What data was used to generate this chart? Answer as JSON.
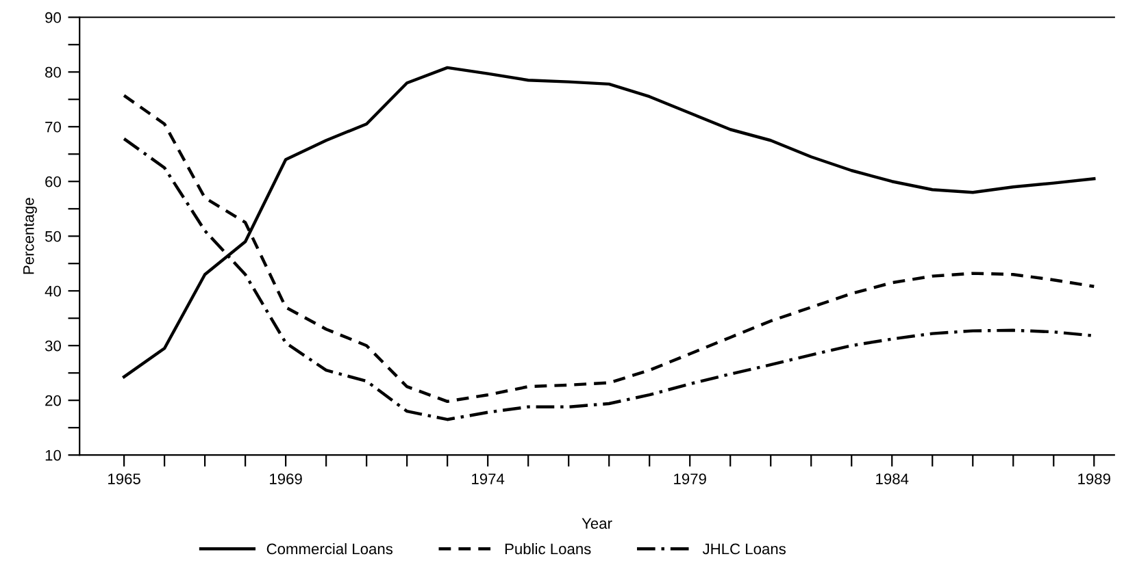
{
  "chart_data": {
    "type": "line",
    "xlabel": "Year",
    "ylabel": "Percentage",
    "x": [
      1965,
      1966,
      1967,
      1968,
      1969,
      1970,
      1971,
      1972,
      1973,
      1974,
      1975,
      1976,
      1977,
      1978,
      1979,
      1980,
      1981,
      1982,
      1983,
      1984,
      1985,
      1986,
      1987,
      1988,
      1989
    ],
    "series": [
      {
        "name": "Commercial Loans",
        "color": "#000000",
        "line_style": "solid",
        "values": [
          24.3,
          29.5,
          43,
          49,
          64,
          67.5,
          70.5,
          78,
          80.8,
          79.7,
          78.5,
          78.2,
          77.8,
          75.5,
          72.5,
          69.5,
          67.5,
          64.5,
          62,
          60,
          58.5,
          58,
          59,
          59.7,
          60.5
        ]
      },
      {
        "name": "Public Loans",
        "color": "#000000",
        "line_style": "dashed",
        "values": [
          75.7,
          70.5,
          57,
          52.5,
          37,
          33,
          30,
          22.5,
          19.8,
          21,
          22.5,
          22.8,
          23.2,
          25.5,
          28.5,
          31.5,
          34.5,
          37,
          39.5,
          41.5,
          42.7,
          43.2,
          43,
          42,
          40.8
        ]
      },
      {
        "name": "JHLC Loans",
        "color": "#000000",
        "line_style": "dashdot",
        "values": [
          67.8,
          62.5,
          51,
          43,
          30.5,
          25.5,
          23.5,
          18,
          16.5,
          17.8,
          18.8,
          18.8,
          19.4,
          21,
          23,
          24.8,
          26.5,
          28.3,
          30,
          31.2,
          32.2,
          32.7,
          32.8,
          32.5,
          31.8
        ]
      }
    ],
    "xlim": [
      1963.9,
      1989.5
    ],
    "ylim": [
      10,
      90
    ],
    "xticks": [
      1965,
      {
        "value": 1966,
        "label": null
      },
      {
        "value": 1967,
        "label": null
      },
      {
        "value": 1968,
        "label": null
      },
      1969,
      {
        "value": 1970,
        "label": null
      },
      {
        "value": 1971,
        "label": null
      },
      {
        "value": 1972,
        "label": null
      },
      {
        "value": 1973,
        "label": null
      },
      1974,
      {
        "value": 1975,
        "label": null
      },
      {
        "value": 1976,
        "label": null
      },
      {
        "value": 1977,
        "label": null
      },
      {
        "value": 1978,
        "label": null
      },
      1979,
      {
        "value": 1980,
        "label": null
      },
      {
        "value": 1981,
        "label": null
      },
      {
        "value": 1982,
        "label": null
      },
      {
        "value": 1983,
        "label": null
      },
      1984,
      {
        "value": 1985,
        "label": null
      },
      {
        "value": 1986,
        "label": null
      },
      {
        "value": 1987,
        "label": null
      },
      {
        "value": 1988,
        "label": null
      },
      1989
    ],
    "yticks": [
      10,
      {
        "value": 15,
        "label": null
      },
      20,
      {
        "value": 25,
        "label": null
      },
      30,
      {
        "value": 35,
        "label": null
      },
      40,
      {
        "value": 45,
        "label": null
      },
      50,
      {
        "value": 55,
        "label": null
      },
      60,
      {
        "value": 65,
        "label": null
      },
      70,
      {
        "value": 75,
        "label": null
      },
      80,
      {
        "value": 85,
        "label": null
      },
      90
    ],
    "grid": false,
    "legend": "bottom",
    "marker": "none"
  }
}
